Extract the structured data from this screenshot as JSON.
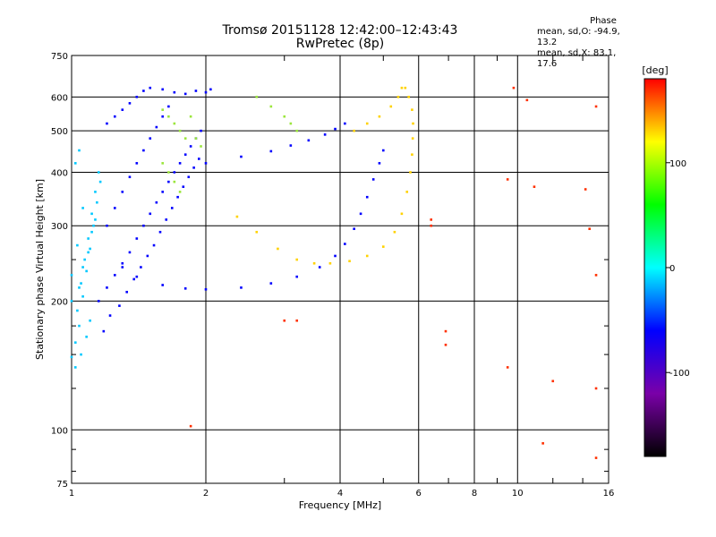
{
  "header": {
    "title_line1": "Tromsø 20151128 12:42:00–12:43:43",
    "title_line2": "RwPretec (8p)"
  },
  "phase_stats": {
    "title": "Phase",
    "line_o": "mean, sd,O: -94.9, 13.2",
    "line_x": "mean, sd,X:  83.1, 17.6"
  },
  "colors": {
    "grid": "#000000",
    "scale": [
      "#000000",
      "#7a00a8",
      "#0000ff",
      "#00ffff",
      "#00ff00",
      "#ffff00",
      "#ff0000"
    ]
  },
  "chart_data": {
    "type": "scatter",
    "title": "Tromsø 20151128 12:42:00–12:43:43",
    "subtitle": "RwPretec (8p)",
    "xlabel": "Frequency [MHz]",
    "ylabel": "Stationary phase Virtual Height [km]",
    "xscale": "log",
    "yscale": "log",
    "xlim": [
      1,
      16
    ],
    "ylim": [
      75,
      750
    ],
    "x_ticks": [
      1,
      2,
      4,
      6,
      8,
      10,
      16
    ],
    "x_minor_ticks": [
      3,
      5,
      7,
      9,
      12,
      14
    ],
    "y_ticks": [
      75,
      100,
      200,
      300,
      400,
      500,
      600,
      750
    ],
    "y_minor_ticks": [
      80,
      90,
      125,
      150,
      175,
      250
    ],
    "grid": true,
    "colorbar": {
      "label": "[deg]",
      "range": [
        -180,
        180
      ],
      "ticks": [
        -100,
        0,
        100
      ]
    },
    "series": [
      {
        "name": "low-frequency scatter (cyan)",
        "color": "#00c8ff",
        "points": [
          [
            1.0,
            148
          ],
          [
            1.02,
            160
          ],
          [
            1.04,
            175
          ],
          [
            1.03,
            190
          ],
          [
            1.06,
            205
          ],
          [
            1.05,
            220
          ],
          [
            1.08,
            235
          ],
          [
            1.07,
            250
          ],
          [
            1.1,
            265
          ],
          [
            1.09,
            280
          ],
          [
            1.12,
            300
          ],
          [
            1.11,
            320
          ],
          [
            1.14,
            340
          ],
          [
            1.13,
            360
          ],
          [
            1.16,
            380
          ],
          [
            1.15,
            400
          ],
          [
            1.02,
            140
          ],
          [
            1.05,
            150
          ],
          [
            1.08,
            165
          ],
          [
            1.1,
            180
          ],
          [
            1.0,
            200
          ],
          [
            1.04,
            215
          ],
          [
            1.06,
            240
          ],
          [
            1.09,
            260
          ],
          [
            1.11,
            290
          ],
          [
            1.13,
            310
          ],
          [
            1.0,
            230
          ],
          [
            1.03,
            270
          ],
          [
            1.06,
            330
          ],
          [
            1.02,
            420
          ],
          [
            1.04,
            450
          ]
        ]
      },
      {
        "name": "O-mode dense cloud (blue)",
        "color": "#0000ff",
        "points": [
          [
            1.15,
            200
          ],
          [
            1.2,
            215
          ],
          [
            1.25,
            230
          ],
          [
            1.3,
            245
          ],
          [
            1.35,
            260
          ],
          [
            1.4,
            280
          ],
          [
            1.45,
            300
          ],
          [
            1.5,
            320
          ],
          [
            1.55,
            340
          ],
          [
            1.6,
            360
          ],
          [
            1.65,
            380
          ],
          [
            1.7,
            400
          ],
          [
            1.75,
            420
          ],
          [
            1.8,
            440
          ],
          [
            1.85,
            460
          ],
          [
            1.9,
            480
          ],
          [
            1.95,
            500
          ],
          [
            1.2,
            520
          ],
          [
            1.25,
            540
          ],
          [
            1.3,
            560
          ],
          [
            1.35,
            580
          ],
          [
            1.4,
            600
          ],
          [
            1.45,
            620
          ],
          [
            1.5,
            630
          ],
          [
            1.6,
            625
          ],
          [
            1.7,
            615
          ],
          [
            1.8,
            610
          ],
          [
            1.9,
            620
          ],
          [
            2.0,
            615
          ],
          [
            2.05,
            625
          ],
          [
            1.18,
            170
          ],
          [
            1.22,
            185
          ],
          [
            1.28,
            195
          ],
          [
            1.33,
            210
          ],
          [
            1.38,
            225
          ],
          [
            1.43,
            240
          ],
          [
            1.48,
            255
          ],
          [
            1.53,
            270
          ],
          [
            1.58,
            290
          ],
          [
            1.63,
            310
          ],
          [
            1.68,
            330
          ],
          [
            1.73,
            350
          ],
          [
            1.78,
            370
          ],
          [
            1.83,
            390
          ],
          [
            1.88,
            410
          ],
          [
            1.93,
            430
          ],
          [
            1.2,
            300
          ],
          [
            1.25,
            330
          ],
          [
            1.3,
            360
          ],
          [
            1.35,
            390
          ],
          [
            1.4,
            420
          ],
          [
            1.45,
            450
          ],
          [
            1.5,
            480
          ],
          [
            1.55,
            510
          ],
          [
            1.6,
            540
          ],
          [
            1.65,
            570
          ]
        ]
      },
      {
        "name": "O-mode trace (blue)",
        "color": "#0000ff",
        "points": [
          [
            1.3,
            240
          ],
          [
            1.4,
            228
          ],
          [
            1.6,
            218
          ],
          [
            1.8,
            214
          ],
          [
            2.0,
            213
          ],
          [
            2.4,
            215
          ],
          [
            2.8,
            220
          ],
          [
            3.2,
            228
          ],
          [
            3.6,
            240
          ],
          [
            3.9,
            255
          ],
          [
            4.1,
            272
          ],
          [
            4.3,
            295
          ],
          [
            4.45,
            320
          ],
          [
            4.6,
            350
          ],
          [
            4.75,
            385
          ],
          [
            4.9,
            420
          ],
          [
            5.0,
            450
          ],
          [
            2.0,
            420
          ],
          [
            2.4,
            435
          ],
          [
            2.8,
            448
          ],
          [
            3.1,
            462
          ],
          [
            3.4,
            475
          ],
          [
            3.7,
            490
          ],
          [
            3.9,
            505
          ],
          [
            4.1,
            520
          ]
        ]
      },
      {
        "name": "X-mode trace (yellow/orange)",
        "color": "#ffd200",
        "points": [
          [
            2.35,
            315
          ],
          [
            2.6,
            290
          ],
          [
            2.9,
            265
          ],
          [
            3.2,
            250
          ],
          [
            3.5,
            245
          ],
          [
            3.8,
            245
          ],
          [
            4.2,
            248
          ],
          [
            4.6,
            255
          ],
          [
            5.0,
            268
          ],
          [
            5.3,
            290
          ],
          [
            5.5,
            320
          ],
          [
            5.65,
            360
          ],
          [
            5.75,
            400
          ],
          [
            5.8,
            440
          ],
          [
            5.82,
            480
          ],
          [
            5.83,
            520
          ],
          [
            5.8,
            560
          ],
          [
            5.7,
            600
          ],
          [
            5.6,
            630
          ],
          [
            4.3,
            500
          ],
          [
            4.6,
            520
          ],
          [
            4.9,
            540
          ],
          [
            5.2,
            570
          ],
          [
            5.4,
            600
          ],
          [
            5.5,
            630
          ]
        ]
      },
      {
        "name": "mixed green patches",
        "color": "#9be63c",
        "points": [
          [
            1.6,
            560
          ],
          [
            1.65,
            540
          ],
          [
            1.7,
            520
          ],
          [
            1.75,
            500
          ],
          [
            1.8,
            480
          ],
          [
            1.6,
            420
          ],
          [
            1.65,
            400
          ],
          [
            1.7,
            380
          ],
          [
            1.75,
            360
          ],
          [
            1.9,
            480
          ],
          [
            1.95,
            460
          ],
          [
            1.85,
            540
          ],
          [
            2.6,
            600
          ],
          [
            2.8,
            570
          ],
          [
            3.0,
            540
          ],
          [
            3.1,
            520
          ],
          [
            3.2,
            500
          ]
        ]
      },
      {
        "name": "sparse outliers",
        "color": "#ff3000",
        "points": [
          [
            1.85,
            102
          ],
          [
            3.0,
            180
          ],
          [
            3.2,
            180
          ],
          [
            6.9,
            170
          ],
          [
            6.9,
            158
          ],
          [
            6.4,
            300
          ],
          [
            6.4,
            310
          ],
          [
            9.5,
            385
          ],
          [
            9.8,
            630
          ],
          [
            10.5,
            590
          ],
          [
            10.9,
            370
          ],
          [
            12.0,
            130
          ],
          [
            14.2,
            365
          ],
          [
            14.5,
            295
          ],
          [
            15.0,
            570
          ],
          [
            15.0,
            230
          ],
          [
            15.0,
            125
          ],
          [
            15.0,
            86
          ],
          [
            9.5,
            140
          ],
          [
            11.4,
            93
          ]
        ]
      }
    ]
  }
}
